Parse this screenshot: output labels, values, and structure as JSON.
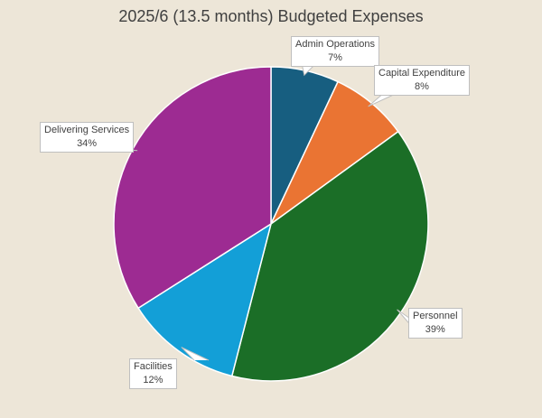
{
  "chart_data": {
    "type": "pie",
    "title": "2025/6 (13.5 months) Budgeted Expenses",
    "start_angle": "12 o'clock, clockwise",
    "slices": [
      {
        "label": "Admin Operations",
        "value": 7,
        "pct_label": "7%",
        "color": "#175e80"
      },
      {
        "label": "Capital Expenditure",
        "value": 8,
        "pct_label": "8%",
        "color": "#ea7433"
      },
      {
        "label": "Personnel",
        "value": 39,
        "pct_label": "39%",
        "color": "#1b6e27"
      },
      {
        "label": "Facilities",
        "value": 12,
        "pct_label": "12%",
        "color": "#139fd7"
      },
      {
        "label": "Delivering Services",
        "value": 34,
        "pct_label": "34%",
        "color": "#9d2b92"
      }
    ]
  }
}
